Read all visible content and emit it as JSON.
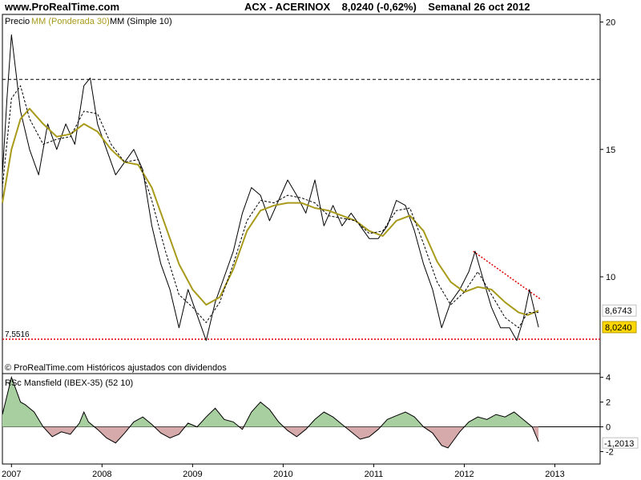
{
  "header": {
    "site": "www.ProRealTime.com",
    "symbol": "ACX - ACERINOX",
    "last": "8,0240 (-0,62%)",
    "period": "Semanal  26 oct 2012"
  },
  "chart_data": [
    {
      "type": "line",
      "legend": [
        {
          "label": "Precio",
          "color": "#000000"
        },
        {
          "label": "MM (Ponderada 30)",
          "color": "#a89a1a"
        },
        {
          "label": "MM (Simple 10)",
          "color": "#000000"
        }
      ],
      "footer_note": "© ProRealTime.com  Históricos ajustados con dividendos",
      "x_ticks": [
        "2007",
        "2008",
        "2009",
        "2010",
        "2011",
        "2012",
        "2013"
      ],
      "x_range": [
        2006.9,
        2013.5
      ],
      "y_ticks": [
        20,
        15,
        10
      ],
      "ylim": [
        6.2,
        20.3
      ],
      "y_scale": "linear",
      "hlines": [
        {
          "value": 17.75,
          "color": "#000000",
          "style": "dashed"
        },
        {
          "value": 7.5516,
          "label": "7,5516",
          "color": "#dd0000",
          "style": "dotted"
        }
      ],
      "trendline": {
        "points": [
          [
            2012.1,
            11.0
          ],
          [
            2012.85,
            9.1
          ]
        ],
        "color": "#dd0000",
        "style": "dotted"
      },
      "last_labels": [
        {
          "text": "8,6743",
          "value": 8.6743,
          "style": "plain"
        },
        {
          "text": "8,0240",
          "value": 8.024,
          "style": "highlight",
          "bg": "#ffd700"
        }
      ],
      "series": [
        {
          "name": "Precio",
          "color": "#000000",
          "points": [
            [
              2006.9,
              14.0
            ],
            [
              2006.95,
              17.0
            ],
            [
              2007.0,
              19.5
            ],
            [
              2007.05,
              18.0
            ],
            [
              2007.1,
              16.5
            ],
            [
              2007.2,
              15.0
            ],
            [
              2007.3,
              14.0
            ],
            [
              2007.4,
              16.0
            ],
            [
              2007.5,
              15.0
            ],
            [
              2007.6,
              16.0
            ],
            [
              2007.7,
              15.2
            ],
            [
              2007.8,
              17.5
            ],
            [
              2007.87,
              17.8
            ],
            [
              2007.95,
              16.0
            ],
            [
              2008.05,
              15.0
            ],
            [
              2008.15,
              14.0
            ],
            [
              2008.25,
              14.5
            ],
            [
              2008.35,
              15.0
            ],
            [
              2008.45,
              14.2
            ],
            [
              2008.55,
              12.0
            ],
            [
              2008.65,
              10.5
            ],
            [
              2008.75,
              9.5
            ],
            [
              2008.85,
              8.0
            ],
            [
              2008.95,
              9.5
            ],
            [
              2009.05,
              8.5
            ],
            [
              2009.15,
              7.5
            ],
            [
              2009.25,
              9.0
            ],
            [
              2009.35,
              10.0
            ],
            [
              2009.45,
              11.0
            ],
            [
              2009.55,
              12.5
            ],
            [
              2009.65,
              13.5
            ],
            [
              2009.75,
              13.2
            ],
            [
              2009.85,
              12.2
            ],
            [
              2009.95,
              13.0
            ],
            [
              2010.05,
              13.8
            ],
            [
              2010.15,
              13.2
            ],
            [
              2010.25,
              12.5
            ],
            [
              2010.35,
              13.8
            ],
            [
              2010.45,
              12.0
            ],
            [
              2010.55,
              12.8
            ],
            [
              2010.65,
              12.0
            ],
            [
              2010.75,
              12.5
            ],
            [
              2010.85,
              12.0
            ],
            [
              2010.95,
              11.5
            ],
            [
              2011.05,
              11.5
            ],
            [
              2011.15,
              12.0
            ],
            [
              2011.25,
              13.0
            ],
            [
              2011.35,
              12.8
            ],
            [
              2011.45,
              11.8
            ],
            [
              2011.55,
              10.5
            ],
            [
              2011.65,
              9.5
            ],
            [
              2011.75,
              8.0
            ],
            [
              2011.85,
              9.0
            ],
            [
              2011.95,
              9.5
            ],
            [
              2012.05,
              10.2
            ],
            [
              2012.12,
              11.0
            ],
            [
              2012.2,
              10.0
            ],
            [
              2012.3,
              8.8
            ],
            [
              2012.4,
              8.0
            ],
            [
              2012.5,
              8.0
            ],
            [
              2012.58,
              7.5
            ],
            [
              2012.65,
              8.3
            ],
            [
              2012.72,
              9.5
            ],
            [
              2012.78,
              8.6
            ],
            [
              2012.82,
              8.02
            ]
          ]
        },
        {
          "name": "MM (Ponderada 30)",
          "color": "#a89a1a",
          "points": [
            [
              2006.9,
              12.9
            ],
            [
              2007.0,
              15.0
            ],
            [
              2007.1,
              16.2
            ],
            [
              2007.2,
              16.6
            ],
            [
              2007.35,
              16.0
            ],
            [
              2007.5,
              15.5
            ],
            [
              2007.65,
              15.6
            ],
            [
              2007.8,
              16.0
            ],
            [
              2007.95,
              15.7
            ],
            [
              2008.1,
              15.0
            ],
            [
              2008.25,
              14.5
            ],
            [
              2008.4,
              14.4
            ],
            [
              2008.55,
              13.5
            ],
            [
              2008.7,
              12.0
            ],
            [
              2008.85,
              10.5
            ],
            [
              2009.0,
              9.5
            ],
            [
              2009.15,
              8.9
            ],
            [
              2009.3,
              9.2
            ],
            [
              2009.45,
              10.3
            ],
            [
              2009.6,
              11.8
            ],
            [
              2009.75,
              12.6
            ],
            [
              2009.9,
              12.8
            ],
            [
              2010.05,
              12.9
            ],
            [
              2010.2,
              12.9
            ],
            [
              2010.35,
              12.7
            ],
            [
              2010.5,
              12.6
            ],
            [
              2010.65,
              12.4
            ],
            [
              2010.8,
              12.2
            ],
            [
              2010.95,
              11.8
            ],
            [
              2011.1,
              11.6
            ],
            [
              2011.25,
              12.2
            ],
            [
              2011.4,
              12.4
            ],
            [
              2011.55,
              11.8
            ],
            [
              2011.7,
              10.6
            ],
            [
              2011.85,
              9.8
            ],
            [
              2012.0,
              9.4
            ],
            [
              2012.15,
              9.6
            ],
            [
              2012.3,
              9.5
            ],
            [
              2012.45,
              9.0
            ],
            [
              2012.6,
              8.6
            ],
            [
              2012.7,
              8.5
            ],
            [
              2012.82,
              8.67
            ]
          ]
        },
        {
          "name": "MM (Simple 10)",
          "color": "#000000",
          "points": [
            [
              2006.9,
              13.5
            ],
            [
              2007.0,
              17.0
            ],
            [
              2007.1,
              17.5
            ],
            [
              2007.2,
              16.2
            ],
            [
              2007.35,
              15.2
            ],
            [
              2007.5,
              15.4
            ],
            [
              2007.65,
              15.5
            ],
            [
              2007.8,
              16.5
            ],
            [
              2007.95,
              16.4
            ],
            [
              2008.1,
              15.2
            ],
            [
              2008.25,
              14.5
            ],
            [
              2008.4,
              14.6
            ],
            [
              2008.55,
              13.0
            ],
            [
              2008.7,
              11.0
            ],
            [
              2008.85,
              9.3
            ],
            [
              2009.0,
              8.8
            ],
            [
              2009.15,
              8.2
            ],
            [
              2009.3,
              9.0
            ],
            [
              2009.45,
              10.5
            ],
            [
              2009.6,
              12.2
            ],
            [
              2009.75,
              13.0
            ],
            [
              2009.9,
              12.9
            ],
            [
              2010.05,
              13.2
            ],
            [
              2010.2,
              13.1
            ],
            [
              2010.35,
              12.9
            ],
            [
              2010.5,
              12.4
            ],
            [
              2010.65,
              12.3
            ],
            [
              2010.8,
              12.2
            ],
            [
              2010.95,
              11.7
            ],
            [
              2011.1,
              11.8
            ],
            [
              2011.25,
              12.6
            ],
            [
              2011.4,
              12.7
            ],
            [
              2011.55,
              11.3
            ],
            [
              2011.7,
              9.8
            ],
            [
              2011.85,
              8.9
            ],
            [
              2012.0,
              9.4
            ],
            [
              2012.15,
              10.2
            ],
            [
              2012.3,
              9.3
            ],
            [
              2012.45,
              8.4
            ],
            [
              2012.6,
              8.0
            ],
            [
              2012.7,
              8.6
            ],
            [
              2012.82,
              8.6
            ]
          ]
        }
      ]
    },
    {
      "type": "area",
      "title": "RSc Mansfield (IBEX-35) (52 10)",
      "y_ticks": [
        4,
        2,
        0,
        -2
      ],
      "ylim": [
        -3.0,
        4.3
      ],
      "last_label": {
        "text": "-1,2013",
        "value": -1.2013
      },
      "positive_color": "#a8cfa0",
      "negative_color": "#d6aaaa",
      "series": [
        {
          "name": "RSc Mansfield",
          "points": [
            [
              2006.9,
              1.0
            ],
            [
              2006.95,
              2.5
            ],
            [
              2007.0,
              4.0
            ],
            [
              2007.05,
              3.0
            ],
            [
              2007.1,
              2.0
            ],
            [
              2007.15,
              1.8
            ],
            [
              2007.25,
              1.2
            ],
            [
              2007.35,
              0.0
            ],
            [
              2007.45,
              -0.8
            ],
            [
              2007.55,
              -0.4
            ],
            [
              2007.65,
              -0.6
            ],
            [
              2007.75,
              0.3
            ],
            [
              2007.8,
              1.2
            ],
            [
              2007.85,
              0.4
            ],
            [
              2007.95,
              -0.2
            ],
            [
              2008.05,
              -0.9
            ],
            [
              2008.15,
              -1.3
            ],
            [
              2008.25,
              -0.5
            ],
            [
              2008.35,
              0.4
            ],
            [
              2008.45,
              0.8
            ],
            [
              2008.55,
              0.2
            ],
            [
              2008.65,
              -0.5
            ],
            [
              2008.75,
              -0.9
            ],
            [
              2008.85,
              -0.6
            ],
            [
              2008.95,
              0.3
            ],
            [
              2009.05,
              0.0
            ],
            [
              2009.15,
              0.8
            ],
            [
              2009.25,
              1.5
            ],
            [
              2009.35,
              0.6
            ],
            [
              2009.45,
              0.4
            ],
            [
              2009.55,
              -0.2
            ],
            [
              2009.65,
              1.2
            ],
            [
              2009.75,
              2.0
            ],
            [
              2009.85,
              1.4
            ],
            [
              2009.95,
              0.4
            ],
            [
              2010.05,
              -0.3
            ],
            [
              2010.15,
              -0.8
            ],
            [
              2010.25,
              -0.2
            ],
            [
              2010.35,
              0.6
            ],
            [
              2010.45,
              1.2
            ],
            [
              2010.55,
              0.8
            ],
            [
              2010.65,
              0.2
            ],
            [
              2010.75,
              -0.4
            ],
            [
              2010.85,
              -1.0
            ],
            [
              2010.95,
              -0.8
            ],
            [
              2011.05,
              -0.2
            ],
            [
              2011.15,
              0.6
            ],
            [
              2011.25,
              0.9
            ],
            [
              2011.35,
              1.2
            ],
            [
              2011.45,
              0.8
            ],
            [
              2011.55,
              0.0
            ],
            [
              2011.65,
              -0.5
            ],
            [
              2011.75,
              -1.5
            ],
            [
              2011.82,
              -1.7
            ],
            [
              2011.9,
              -0.9
            ],
            [
              2011.95,
              -0.4
            ],
            [
              2012.05,
              0.4
            ],
            [
              2012.15,
              0.8
            ],
            [
              2012.25,
              0.6
            ],
            [
              2012.35,
              1.0
            ],
            [
              2012.45,
              0.8
            ],
            [
              2012.55,
              1.2
            ],
            [
              2012.65,
              0.6
            ],
            [
              2012.75,
              0.0
            ],
            [
              2012.82,
              -1.2013
            ]
          ]
        }
      ]
    }
  ]
}
